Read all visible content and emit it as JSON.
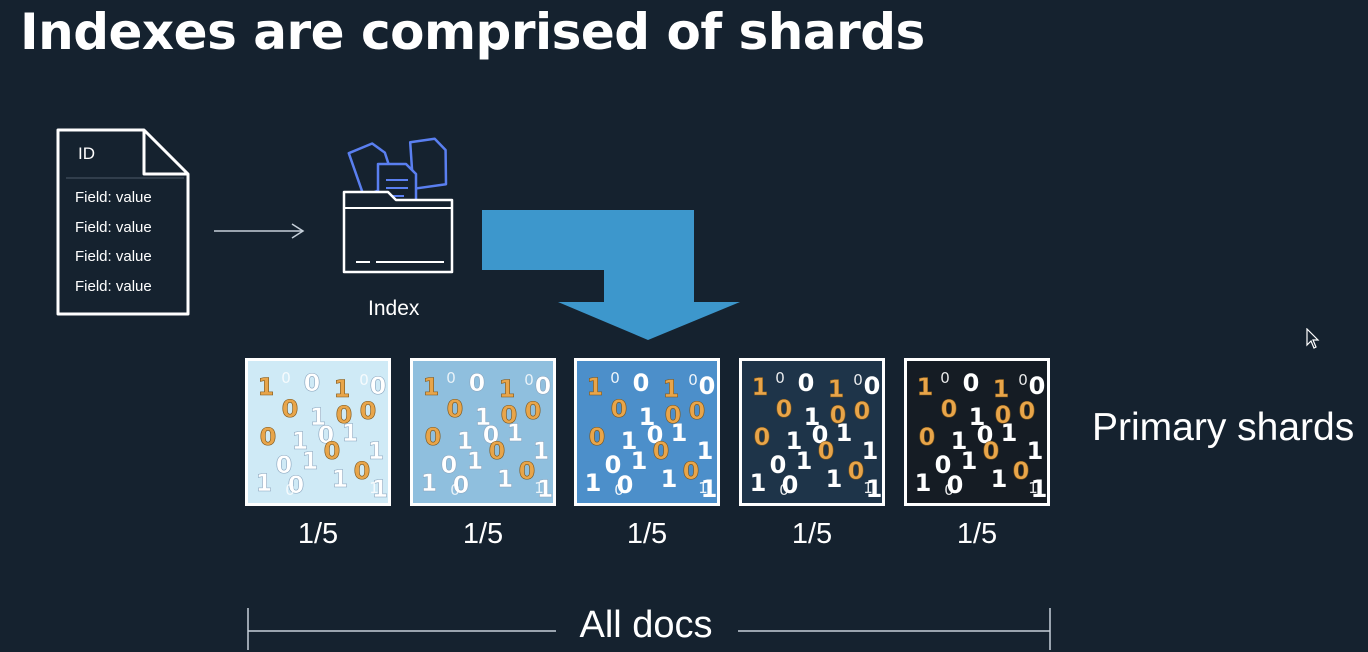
{
  "title": "Indexes are comprised of shards",
  "document": {
    "id_label": "ID",
    "fields": [
      "Field: value",
      "Field: value",
      "Field: value",
      "Field: value"
    ]
  },
  "index": {
    "label": "Index"
  },
  "shards": {
    "label": "Primary shards",
    "items": [
      {
        "fraction": "1/5",
        "bg": "#cfeaf6"
      },
      {
        "fraction": "1/5",
        "bg": "#8fbfde"
      },
      {
        "fraction": "1/5",
        "bg": "#4c8fca"
      },
      {
        "fraction": "1/5",
        "bg": "#1e3449"
      },
      {
        "fraction": "1/5",
        "bg": "#151c24"
      }
    ]
  },
  "all_docs_label": "All docs",
  "colors": {
    "background": "#15222f",
    "arrow": "#3d97cc",
    "index_icon": "#5a7ff0",
    "digit_orange": "#e8a54a"
  }
}
